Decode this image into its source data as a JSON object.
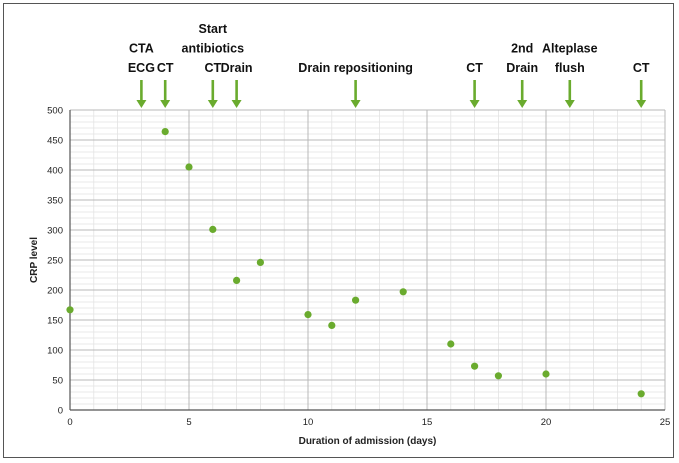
{
  "chart_data": {
    "type": "scatter",
    "title": "",
    "xlabel": "Duration of admission (days)",
    "ylabel": "CRP level",
    "xlim": [
      0,
      25
    ],
    "ylim": [
      0,
      500
    ],
    "x_ticks": [
      0,
      5,
      10,
      15,
      20,
      25
    ],
    "y_ticks": [
      0,
      50,
      100,
      150,
      200,
      250,
      300,
      350,
      400,
      450,
      500
    ],
    "minor_grid_x_step": 1,
    "minor_grid_y_step": 10,
    "grid": true,
    "point_color": "#6aab2e",
    "arrow_color": "#6aab2e",
    "points": [
      {
        "x": 0,
        "y": 167
      },
      {
        "x": 4,
        "y": 464
      },
      {
        "x": 5,
        "y": 405
      },
      {
        "x": 6,
        "y": 301
      },
      {
        "x": 7,
        "y": 216
      },
      {
        "x": 8,
        "y": 246
      },
      {
        "x": 10,
        "y": 159
      },
      {
        "x": 11,
        "y": 141
      },
      {
        "x": 12,
        "y": 183
      },
      {
        "x": 14,
        "y": 197
      },
      {
        "x": 16,
        "y": 110
      },
      {
        "x": 17,
        "y": 73
      },
      {
        "x": 18,
        "y": 57
      },
      {
        "x": 20,
        "y": 60
      },
      {
        "x": 24,
        "y": 27
      }
    ],
    "annotations": [
      {
        "x": 3,
        "lines": [
          "CTA",
          "ECG"
        ]
      },
      {
        "x": 4,
        "lines": [
          "CT"
        ]
      },
      {
        "x": 6,
        "lines": [
          "Start",
          "antibiotics",
          "CT"
        ]
      },
      {
        "x": 7,
        "lines": [
          "Drain"
        ]
      },
      {
        "x": 12,
        "lines": [
          "Drain repositioning"
        ]
      },
      {
        "x": 17,
        "lines": [
          "CT"
        ]
      },
      {
        "x": 19,
        "lines": [
          "2nd",
          "Drain"
        ]
      },
      {
        "x": 21,
        "lines": [
          "Alteplase",
          "flush"
        ]
      },
      {
        "x": 24,
        "lines": [
          "CT"
        ]
      }
    ]
  }
}
